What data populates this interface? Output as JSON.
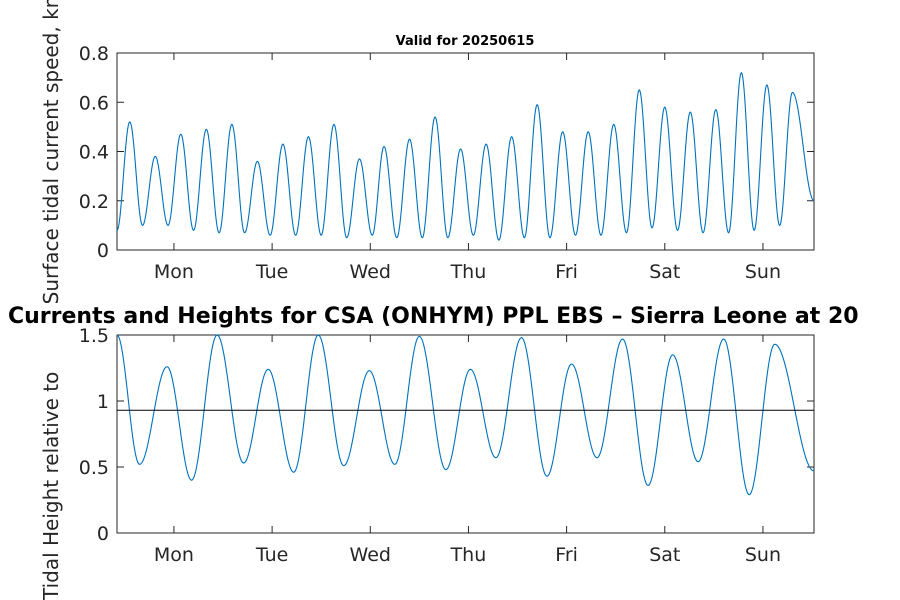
{
  "chart_data": [
    {
      "type": "line",
      "title": "Valid for 20250615",
      "ylabel": "Surface tidal current speed, kn",
      "ylim": [
        0,
        0.8
      ],
      "yticks": [
        0,
        0.2,
        0.4,
        0.6,
        0.8
      ],
      "ytick_labels": [
        "0",
        "0.2",
        "0.4",
        "0.6",
        "0.8"
      ],
      "xlim": [
        -0.58,
        6.52
      ],
      "xticks": [
        0,
        1,
        2,
        3,
        4,
        5,
        6
      ],
      "xtick_labels": [
        "Mon",
        "Tue",
        "Wed",
        "Thu",
        "Fri",
        "Sat",
        "Sun"
      ],
      "line_color": "#0072BD",
      "peaks": [
        {
          "x": -0.45,
          "y": 0.52
        },
        {
          "x": -0.19,
          "y": 0.38
        },
        {
          "x": 0.07,
          "y": 0.47
        },
        {
          "x": 0.33,
          "y": 0.49
        },
        {
          "x": 0.59,
          "y": 0.51
        },
        {
          "x": 0.85,
          "y": 0.36
        },
        {
          "x": 1.11,
          "y": 0.43
        },
        {
          "x": 1.37,
          "y": 0.46
        },
        {
          "x": 1.63,
          "y": 0.51
        },
        {
          "x": 1.89,
          "y": 0.37
        },
        {
          "x": 2.14,
          "y": 0.42
        },
        {
          "x": 2.4,
          "y": 0.45
        },
        {
          "x": 2.66,
          "y": 0.54
        },
        {
          "x": 2.92,
          "y": 0.41
        },
        {
          "x": 3.18,
          "y": 0.43
        },
        {
          "x": 3.44,
          "y": 0.46
        },
        {
          "x": 3.7,
          "y": 0.59
        },
        {
          "x": 3.96,
          "y": 0.48
        },
        {
          "x": 4.22,
          "y": 0.48
        },
        {
          "x": 4.48,
          "y": 0.51
        },
        {
          "x": 4.74,
          "y": 0.65
        },
        {
          "x": 5.0,
          "y": 0.58
        },
        {
          "x": 5.26,
          "y": 0.56
        },
        {
          "x": 5.52,
          "y": 0.57
        },
        {
          "x": 5.78,
          "y": 0.72
        },
        {
          "x": 6.04,
          "y": 0.67
        },
        {
          "x": 6.3,
          "y": 0.64
        }
      ],
      "troughs": [
        {
          "x": -0.58,
          "y": 0.08
        },
        {
          "x": -0.32,
          "y": 0.1
        },
        {
          "x": -0.06,
          "y": 0.1
        },
        {
          "x": 0.2,
          "y": 0.08
        },
        {
          "x": 0.46,
          "y": 0.07
        },
        {
          "x": 0.72,
          "y": 0.07
        },
        {
          "x": 0.98,
          "y": 0.06
        },
        {
          "x": 1.24,
          "y": 0.06
        },
        {
          "x": 1.5,
          "y": 0.06
        },
        {
          "x": 1.76,
          "y": 0.05
        },
        {
          "x": 2.02,
          "y": 0.06
        },
        {
          "x": 2.27,
          "y": 0.05
        },
        {
          "x": 2.53,
          "y": 0.05
        },
        {
          "x": 2.79,
          "y": 0.05
        },
        {
          "x": 3.05,
          "y": 0.06
        },
        {
          "x": 3.31,
          "y": 0.04
        },
        {
          "x": 3.57,
          "y": 0.05
        },
        {
          "x": 3.83,
          "y": 0.05
        },
        {
          "x": 4.09,
          "y": 0.06
        },
        {
          "x": 4.35,
          "y": 0.06
        },
        {
          "x": 4.61,
          "y": 0.07
        },
        {
          "x": 4.87,
          "y": 0.09
        },
        {
          "x": 5.13,
          "y": 0.08
        },
        {
          "x": 5.39,
          "y": 0.07
        },
        {
          "x": 5.65,
          "y": 0.07
        },
        {
          "x": 5.91,
          "y": 0.08
        },
        {
          "x": 6.17,
          "y": 0.1
        },
        {
          "x": 6.52,
          "y": 0.2
        }
      ]
    },
    {
      "type": "line",
      "title": "Currents and Heights for CSA (ONHYM) PPL EBS  – Sierra Leone at 20",
      "ylabel": "Tidal Height relative to",
      "ylim": [
        0,
        1.5
      ],
      "yticks": [
        0,
        0.5,
        1,
        1.5
      ],
      "ytick_labels": [
        "0",
        "0.5",
        "1",
        "1.5"
      ],
      "xlim": [
        -0.58,
        6.52
      ],
      "xticks": [
        0,
        1,
        2,
        3,
        4,
        5,
        6
      ],
      "xtick_labels": [
        "Mon",
        "Tue",
        "Wed",
        "Thu",
        "Fri",
        "Sat",
        "Sun"
      ],
      "line_color": "#0072BD",
      "reference_line": 0.93,
      "reference_color": "#000000",
      "peaks": [
        {
          "x": -0.58,
          "y": 1.5
        },
        {
          "x": -0.07,
          "y": 1.26
        },
        {
          "x": 0.44,
          "y": 1.5
        },
        {
          "x": 0.96,
          "y": 1.24
        },
        {
          "x": 1.47,
          "y": 1.5
        },
        {
          "x": 1.99,
          "y": 1.23
        },
        {
          "x": 2.5,
          "y": 1.49
        },
        {
          "x": 3.02,
          "y": 1.24
        },
        {
          "x": 3.54,
          "y": 1.48
        },
        {
          "x": 4.05,
          "y": 1.28
        },
        {
          "x": 4.57,
          "y": 1.47
        },
        {
          "x": 5.08,
          "y": 1.35
        },
        {
          "x": 5.6,
          "y": 1.47
        },
        {
          "x": 6.12,
          "y": 1.43
        }
      ],
      "troughs": [
        {
          "x": -0.35,
          "y": 0.52
        },
        {
          "x": 0.18,
          "y": 0.4
        },
        {
          "x": 0.71,
          "y": 0.53
        },
        {
          "x": 1.22,
          "y": 0.46
        },
        {
          "x": 1.73,
          "y": 0.51
        },
        {
          "x": 2.25,
          "y": 0.52
        },
        {
          "x": 2.77,
          "y": 0.48
        },
        {
          "x": 3.28,
          "y": 0.57
        },
        {
          "x": 3.8,
          "y": 0.43
        },
        {
          "x": 4.31,
          "y": 0.57
        },
        {
          "x": 4.83,
          "y": 0.36
        },
        {
          "x": 5.34,
          "y": 0.54
        },
        {
          "x": 5.86,
          "y": 0.29
        },
        {
          "x": 6.52,
          "y": 0.47
        }
      ]
    }
  ]
}
